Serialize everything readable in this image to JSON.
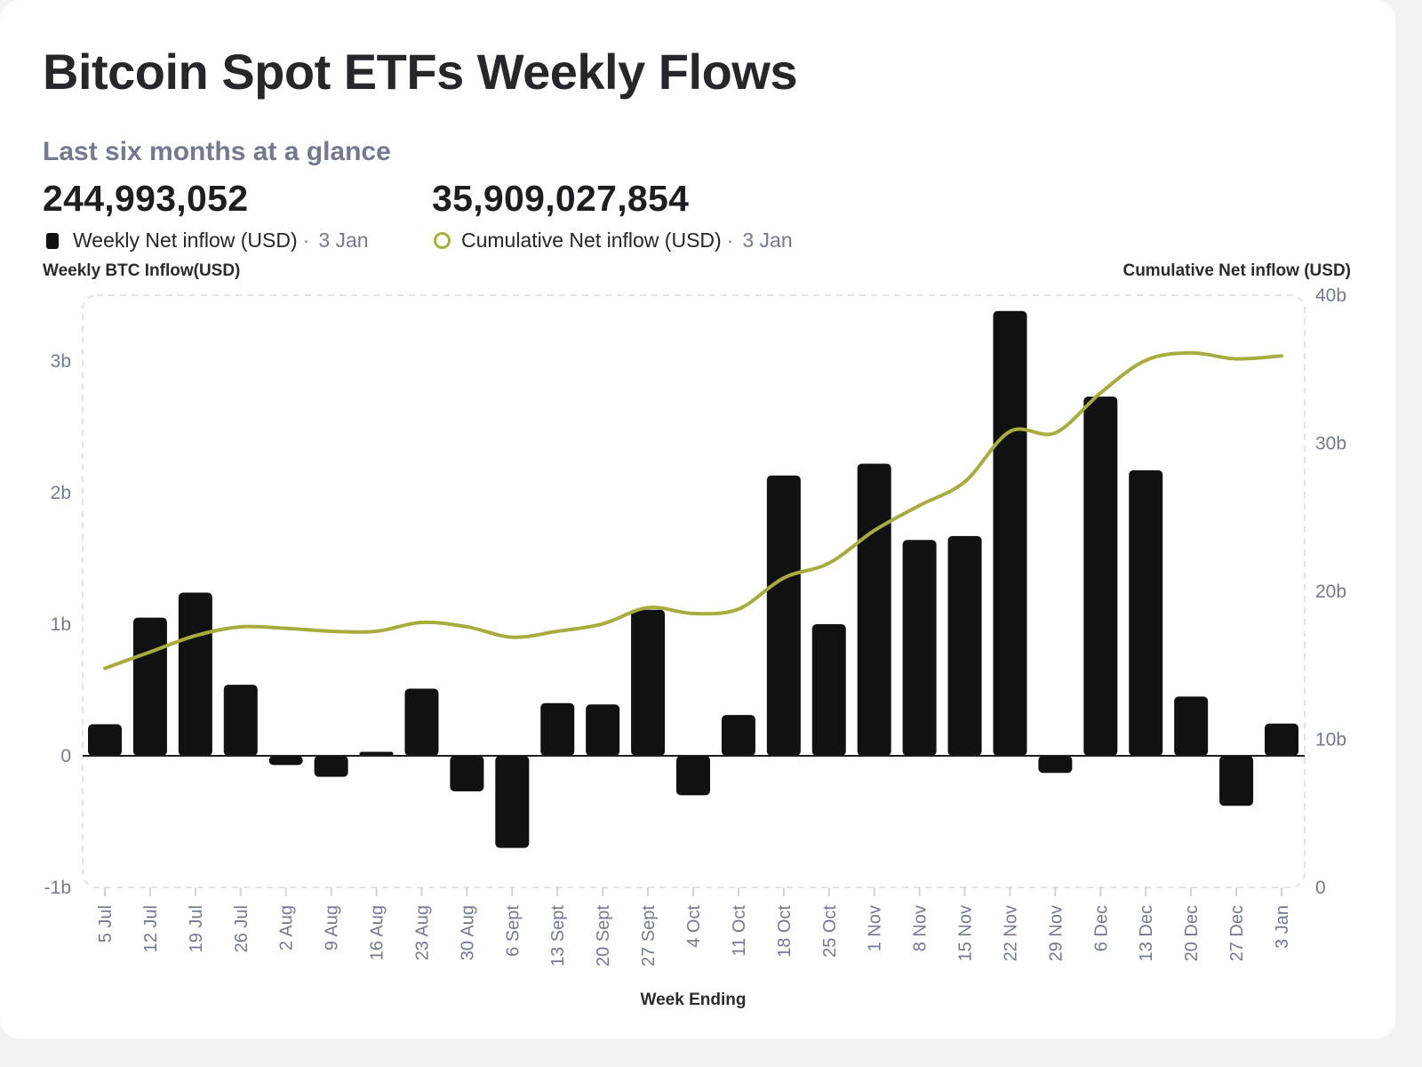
{
  "title": "Bitcoin Spot ETFs Weekly Flows",
  "subtitle": "Last six months at a glance",
  "kpis": {
    "weekly": {
      "value": "244,993,052",
      "label": "Weekly Net inflow (USD)",
      "date": "3 Jan",
      "sep": "·"
    },
    "cumulative": {
      "value": "35,909,027,854",
      "label": "Cumulative Net inflow (USD)",
      "date": "3 Jan",
      "sep": "·"
    }
  },
  "colors": {
    "bar": "#111111",
    "line": "#a7ad3c",
    "grid": "#e3e3e6",
    "tick": "#737a8f"
  },
  "chart_data": {
    "type": "bar",
    "title": "Bitcoin Spot ETFs Weekly Flows",
    "xlabel": "Week Ending",
    "ylabel": "Weekly BTC Inflow(USD)",
    "y2label": "Cumulative Net inflow (USD)",
    "ylim": [
      -1,
      3.5
    ],
    "y2lim": [
      0,
      40
    ],
    "yticks": [
      {
        "v": -1,
        "label": "-1b"
      },
      {
        "v": 0,
        "label": "0"
      },
      {
        "v": 1,
        "label": "1b"
      },
      {
        "v": 2,
        "label": "2b"
      },
      {
        "v": 3,
        "label": "3b"
      }
    ],
    "y2ticks": [
      {
        "v": 0,
        "label": "0"
      },
      {
        "v": 10,
        "label": "10b"
      },
      {
        "v": 20,
        "label": "20b"
      },
      {
        "v": 30,
        "label": "30b"
      },
      {
        "v": 40,
        "label": "40b"
      }
    ],
    "categories": [
      "5 Jul",
      "12 Jul",
      "19 Jul",
      "26 Jul",
      "2 Aug",
      "9 Aug",
      "16 Aug",
      "23 Aug",
      "30 Aug",
      "6 Sept",
      "13 Sept",
      "20 Sept",
      "27 Sept",
      "4 Oct",
      "11 Oct",
      "18 Oct",
      "25 Oct",
      "1 Nov",
      "8 Nov",
      "15 Nov",
      "22 Nov",
      "29 Nov",
      "6 Dec",
      "13 Dec",
      "20 Dec",
      "27 Dec",
      "3 Jan"
    ],
    "series": [
      {
        "name": "Weekly Net inflow (USD)",
        "type": "bar",
        "axis": "left",
        "unit": "billion USD",
        "values": [
          0.24,
          1.05,
          1.24,
          0.54,
          -0.07,
          -0.16,
          0.03,
          0.51,
          -0.27,
          -0.7,
          0.4,
          0.39,
          1.11,
          -0.3,
          0.31,
          2.13,
          1.0,
          2.22,
          1.64,
          1.67,
          3.38,
          -0.13,
          2.73,
          2.17,
          0.45,
          -0.38,
          0.245
        ]
      },
      {
        "name": "Cumulative Net inflow (USD)",
        "type": "line",
        "axis": "right",
        "unit": "billion USD",
        "values": [
          14.8,
          15.9,
          17.0,
          17.6,
          17.5,
          17.3,
          17.3,
          17.9,
          17.6,
          16.9,
          17.3,
          17.8,
          18.9,
          18.5,
          18.8,
          20.9,
          21.9,
          24.1,
          25.8,
          27.4,
          30.8,
          30.7,
          33.4,
          35.6,
          36.1,
          35.7,
          35.9
        ]
      }
    ]
  }
}
